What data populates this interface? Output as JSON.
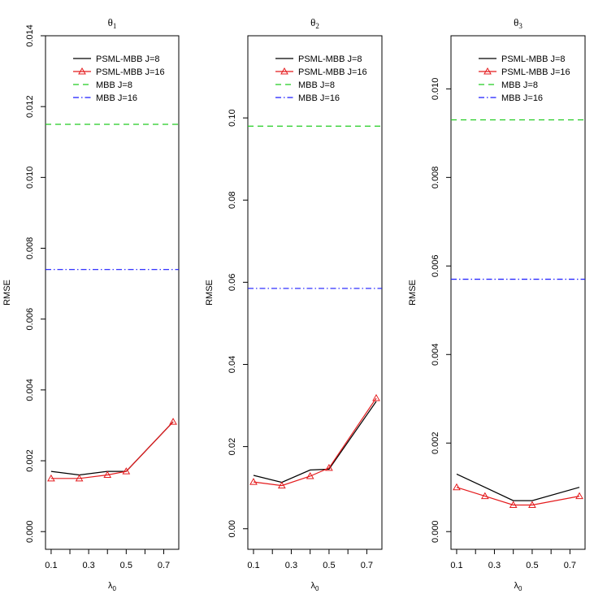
{
  "chart_data": [
    {
      "type": "line",
      "title": "θ",
      "title_sub": "1",
      "xlabel": "λ",
      "xlabel_sub": "0",
      "ylabel": "RMSE",
      "xlim": [
        0.07,
        0.78
      ],
      "ylim": [
        -0.0005,
        0.014
      ],
      "xticks": [
        0.1,
        0.2,
        0.3,
        0.4,
        0.5,
        0.6,
        0.7
      ],
      "xtick_labels": [
        "0.1",
        "",
        "0.3",
        "",
        "0.5",
        "",
        "0.7"
      ],
      "yticks": [
        0.0,
        0.002,
        0.004,
        0.006,
        0.008,
        0.01,
        0.012,
        0.014
      ],
      "ytick_labels": [
        "0.000",
        "0.002",
        "0.004",
        "0.006",
        "0.008",
        "0.010",
        "0.012",
        "0.014"
      ],
      "x": [
        0.1,
        0.25,
        0.4,
        0.5,
        0.75
      ],
      "series": [
        {
          "name": "PSML-MBB J=8",
          "kind": "line",
          "color": "#000000",
          "values": [
            0.0017,
            0.0016,
            0.0017,
            0.0017,
            0.0031
          ]
        },
        {
          "name": "PSML-MBB J=16",
          "kind": "line-triangle",
          "color": "#e41a1c",
          "values": [
            0.0015,
            0.0015,
            0.0016,
            0.0017,
            0.0031
          ]
        },
        {
          "name": "MBB J=8",
          "kind": "hline-dashed",
          "color": "#22cc22",
          "value": 0.0115
        },
        {
          "name": "MBB J=16",
          "kind": "hline-dotdash",
          "color": "#1a1aff",
          "value": 0.0074
        }
      ],
      "legend_position": "top-right"
    },
    {
      "type": "line",
      "title": "θ",
      "title_sub": "2",
      "xlabel": "λ",
      "xlabel_sub": "0",
      "ylabel": "RMSE",
      "xlim": [
        0.07,
        0.78
      ],
      "ylim": [
        -0.005,
        0.12
      ],
      "xticks": [
        0.1,
        0.2,
        0.3,
        0.4,
        0.5,
        0.6,
        0.7
      ],
      "xtick_labels": [
        "0.1",
        "",
        "0.3",
        "",
        "0.5",
        "",
        "0.7"
      ],
      "yticks": [
        0.0,
        0.02,
        0.04,
        0.06,
        0.08,
        0.1
      ],
      "ytick_labels": [
        "0.00",
        "0.02",
        "0.04",
        "0.06",
        "0.08",
        "0.10"
      ],
      "x": [
        0.1,
        0.25,
        0.4,
        0.5,
        0.75
      ],
      "series": [
        {
          "name": "PSML-MBB J=8",
          "kind": "line",
          "color": "#000000",
          "values": [
            0.013,
            0.0113,
            0.0143,
            0.0145,
            0.031
          ]
        },
        {
          "name": "PSML-MBB J=16",
          "kind": "line-triangle",
          "color": "#e41a1c",
          "values": [
            0.0114,
            0.0105,
            0.0128,
            0.0148,
            0.0318
          ]
        },
        {
          "name": "MBB J=8",
          "kind": "hline-dashed",
          "color": "#22cc22",
          "value": 0.098
        },
        {
          "name": "MBB J=16",
          "kind": "hline-dotdash",
          "color": "#1a1aff",
          "value": 0.0585
        }
      ],
      "legend_position": "top-right"
    },
    {
      "type": "line",
      "title": "θ",
      "title_sub": "3",
      "xlabel": "λ",
      "xlabel_sub": "0",
      "ylabel": "RMSE",
      "xlim": [
        0.07,
        0.78
      ],
      "ylim": [
        -0.0004,
        0.0112
      ],
      "xticks": [
        0.1,
        0.2,
        0.3,
        0.4,
        0.5,
        0.6,
        0.7
      ],
      "xtick_labels": [
        "0.1",
        "",
        "0.3",
        "",
        "0.5",
        "",
        "0.7"
      ],
      "yticks": [
        0.0,
        0.002,
        0.004,
        0.006,
        0.008,
        0.01
      ],
      "ytick_labels": [
        "0.000",
        "0.002",
        "0.004",
        "0.006",
        "0.008",
        "0.010"
      ],
      "x": [
        0.1,
        0.25,
        0.4,
        0.5,
        0.75
      ],
      "series": [
        {
          "name": "PSML-MBB J=8",
          "kind": "line",
          "color": "#000000",
          "values": [
            0.0013,
            0.001,
            0.0007,
            0.0007,
            0.001
          ]
        },
        {
          "name": "PSML-MBB J=16",
          "kind": "line-triangle",
          "color": "#e41a1c",
          "values": [
            0.001,
            0.0008,
            0.0006,
            0.0006,
            0.0008
          ]
        },
        {
          "name": "MBB J=8",
          "kind": "hline-dashed",
          "color": "#22cc22",
          "value": 0.0093
        },
        {
          "name": "MBB J=16",
          "kind": "hline-dotdash",
          "color": "#1a1aff",
          "value": 0.0057
        }
      ],
      "legend_position": "top-right"
    }
  ]
}
